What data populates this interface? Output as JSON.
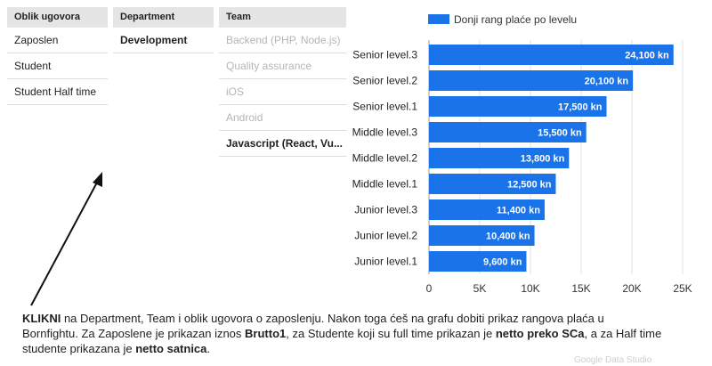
{
  "filters": {
    "oblik": {
      "header": "Oblik ugovora",
      "items": [
        "Zaposlen",
        "Student",
        "Student Half time"
      ]
    },
    "department": {
      "header": "Department",
      "items": [
        "Development"
      ]
    },
    "team": {
      "header": "Team",
      "items": [
        "Backend (PHP, Node.js)",
        "Quality assurance",
        "iOS",
        "Android",
        "Javascript (React, Vu..."
      ]
    }
  },
  "caption": {
    "p1": "KLIKNI",
    "p2": " na Department, Team i oblik ugovora o zaposlenju. Nakon toga ćeš na grafu dobiti prikaz rangova plaća u Bornfightu. Za Zaposlene je prikazan iznos ",
    "p3": "Brutto1",
    "p4": ", za Studente koji su full time prikazan je ",
    "p5": "netto preko SCa",
    "p6": ", a za Half time studente prikazana je ",
    "p7": "netto satnica",
    "p8": "."
  },
  "watermark": "Google Data Studio",
  "chart_data": {
    "type": "bar",
    "orientation": "horizontal",
    "categories": [
      "Senior level.3",
      "Senior level.2",
      "Senior level.1",
      "Middle level.3",
      "Middle level.2",
      "Middle level.1",
      "Junior level.3",
      "Junior level.2",
      "Junior level.1"
    ],
    "series": [
      {
        "name": "Donji rang plaće po levelu",
        "values": [
          24100,
          20100,
          17500,
          15500,
          13800,
          12500,
          11400,
          10400,
          9600
        ],
        "labels": [
          "24,100 kn",
          "20,100 kn",
          "17,500 kn",
          "15,500 kn",
          "13,800 kn",
          "12,500 kn",
          "11,400 kn",
          "10,400 kn",
          "9,600 kn"
        ]
      }
    ],
    "xlim": [
      0,
      25000
    ],
    "xticks": [
      0,
      5000,
      10000,
      15000,
      20000,
      25000
    ],
    "xtick_labels": [
      "0",
      "5K",
      "10K",
      "15K",
      "20K",
      "25K"
    ],
    "grid": true,
    "legend": "top",
    "color": "#1a73e8"
  }
}
